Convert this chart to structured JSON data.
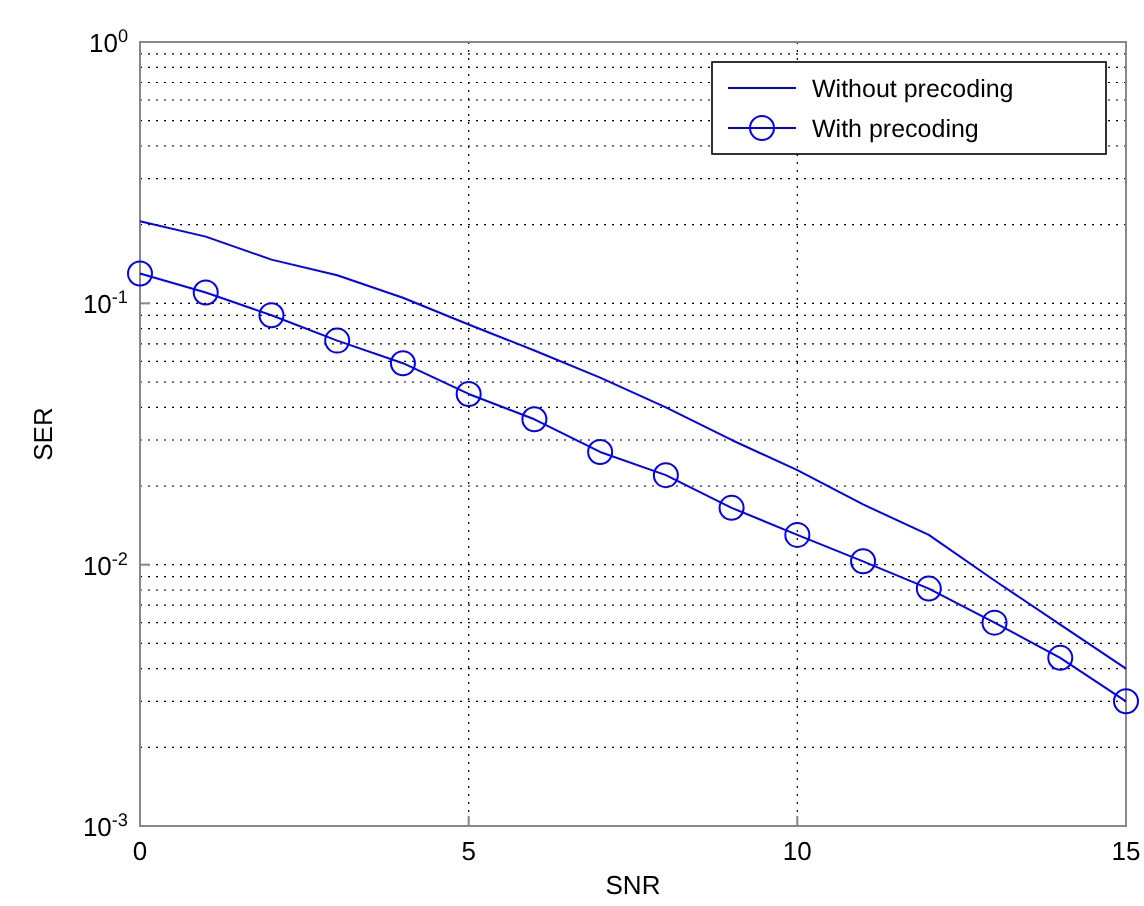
{
  "chart_data": {
    "type": "line",
    "xlabel": "SNR",
    "ylabel": "SER",
    "x": [
      0,
      1,
      2,
      3,
      4,
      5,
      6,
      7,
      8,
      9,
      10,
      11,
      12,
      13,
      14,
      15
    ],
    "series": [
      {
        "name": "Without precoding",
        "color": "#0000ff",
        "marker": "none",
        "values": [
          0.206,
          0.18,
          0.147,
          0.128,
          0.105,
          0.083,
          0.066,
          0.052,
          0.04,
          0.03,
          0.023,
          0.017,
          0.013,
          0.0087,
          0.0059,
          0.004
        ]
      },
      {
        "name": "With precoding",
        "color": "#0000ff",
        "marker": "circle",
        "values": [
          0.13,
          0.11,
          0.09,
          0.072,
          0.059,
          0.045,
          0.036,
          0.027,
          0.022,
          0.0165,
          0.013,
          0.0103,
          0.0081,
          0.006,
          0.0044,
          0.003
        ]
      }
    ],
    "log": "y",
    "xlim": [
      0,
      15
    ],
    "xticks": [
      0,
      5,
      10,
      15
    ],
    "ylim": [
      0.001,
      1
    ],
    "yticks": [
      {
        "value": 0.001,
        "label": "10$^{-3}$"
      },
      {
        "value": 0.01,
        "label": "10$^{-2}$"
      },
      {
        "value": 0.1,
        "label": "10$^{-1}$"
      },
      {
        "value": 1,
        "label": "10$^{0}$"
      }
    ],
    "grid": true,
    "legend": "top right",
    "line_style": "solid"
  }
}
